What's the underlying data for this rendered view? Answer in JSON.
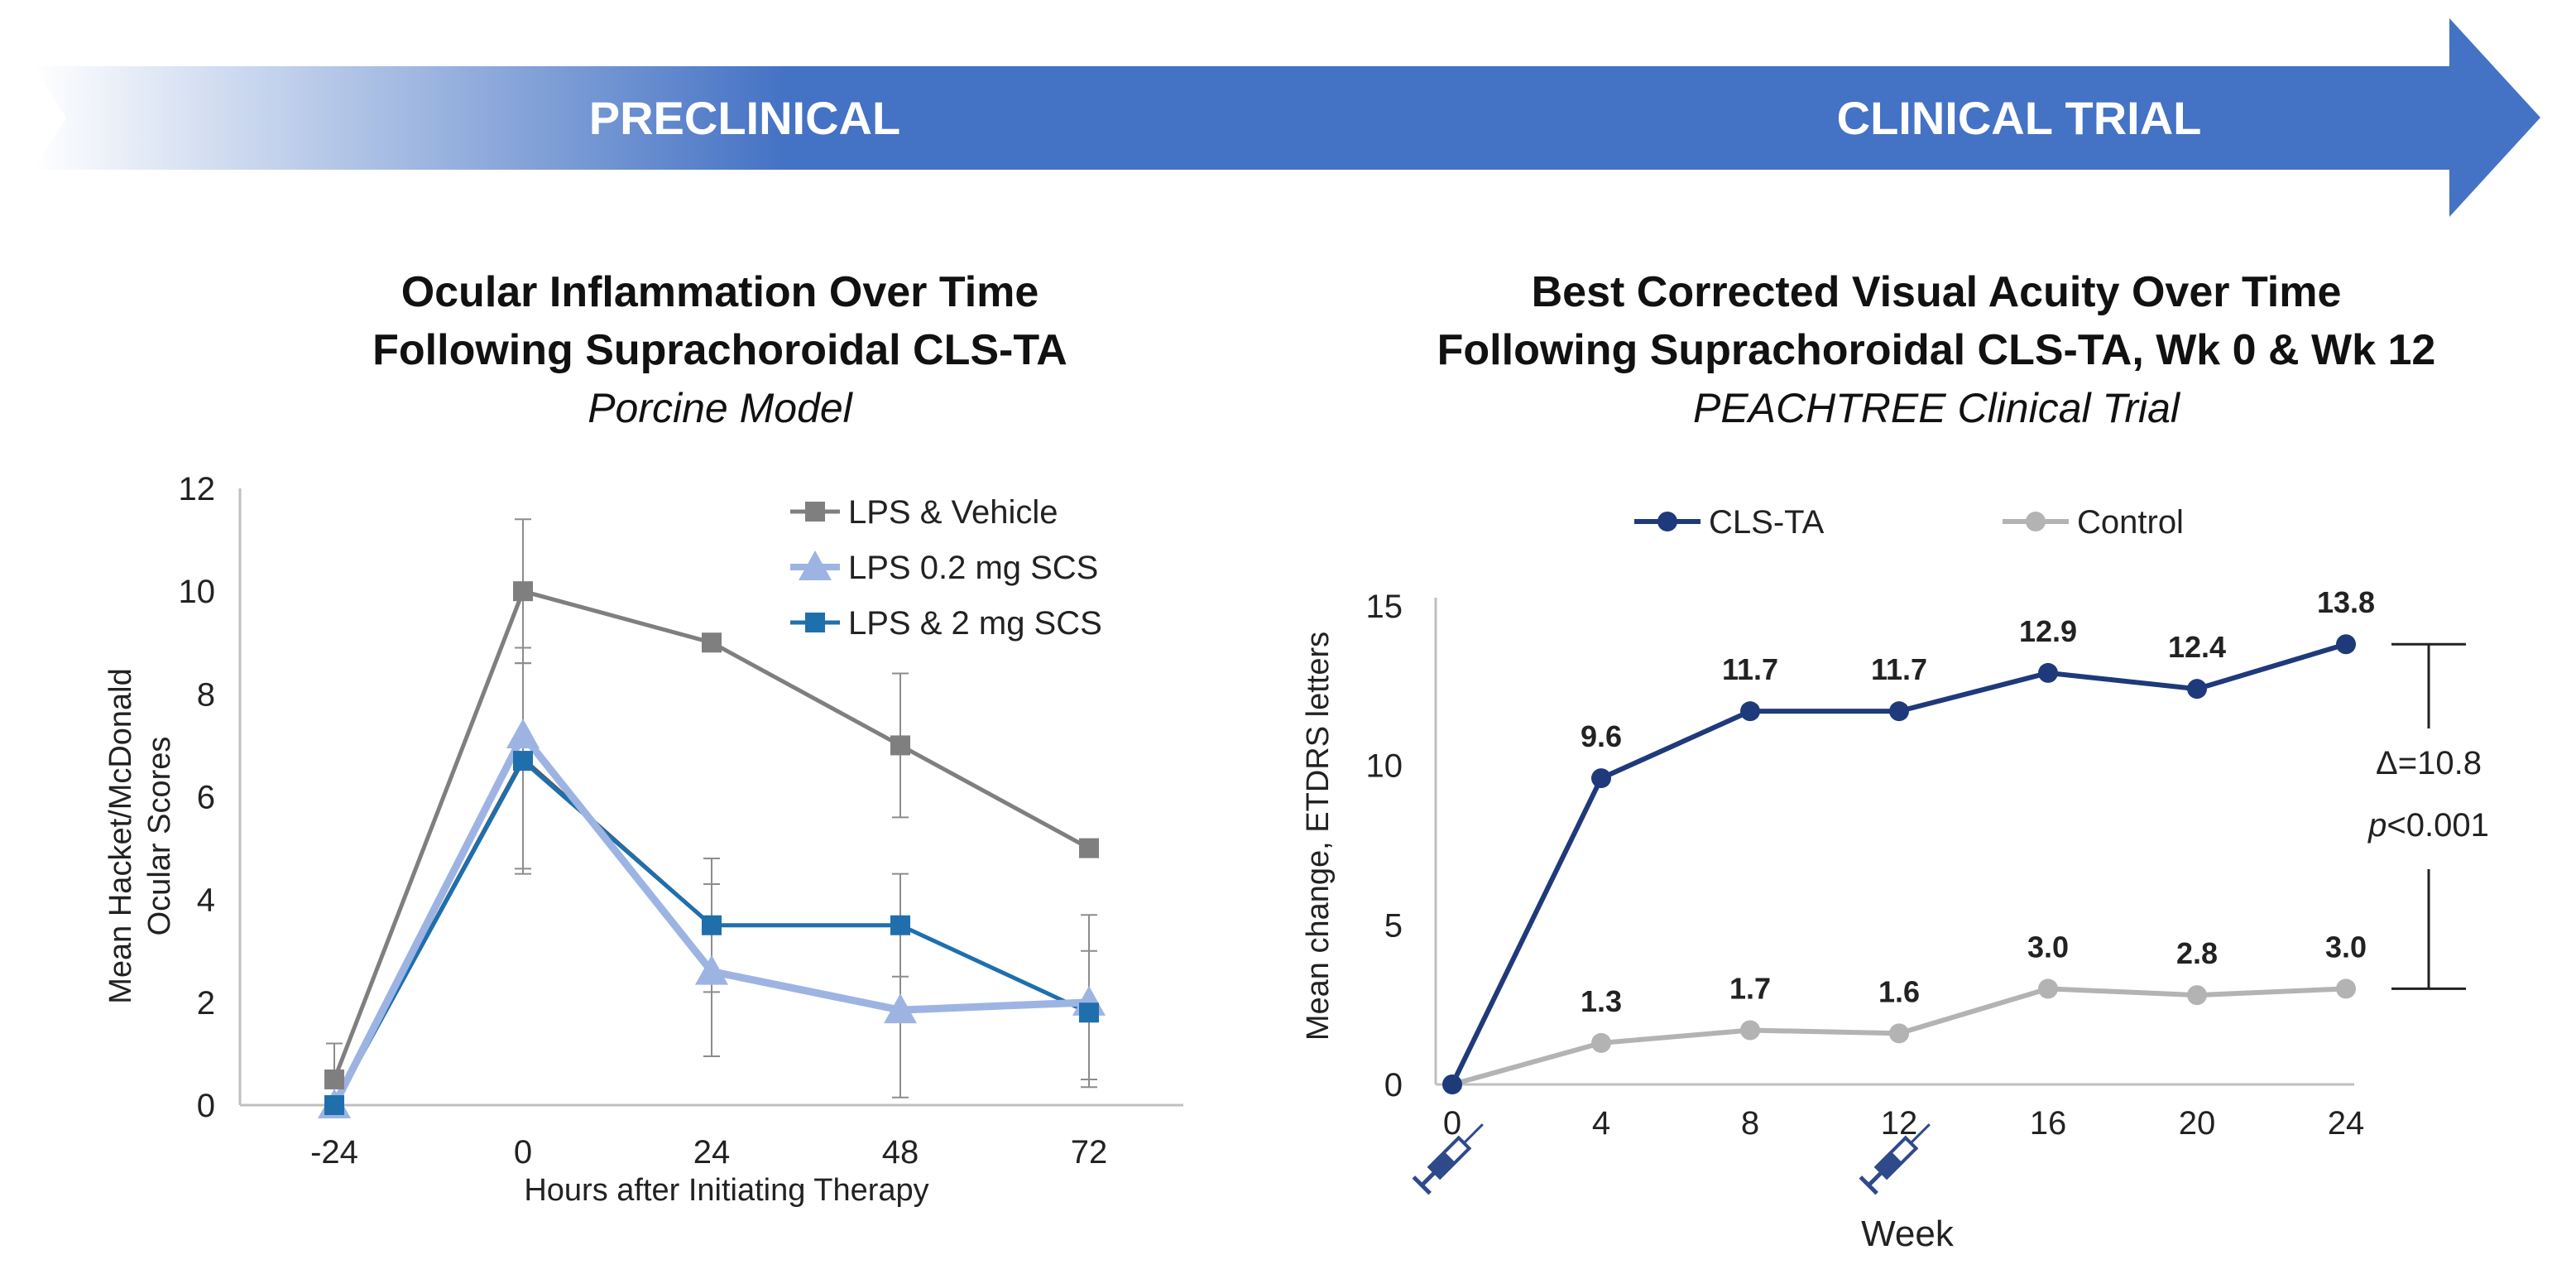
{
  "banner": {
    "left_label": "PRECLINICAL",
    "right_label": "CLINICAL TRIAL",
    "colors": {
      "light": "#ffffff",
      "dark": "#4472c4"
    }
  },
  "chart_data": [
    {
      "type": "line",
      "title_line1": "Ocular Inflammation Over Time",
      "title_line2": "Following Suprachoroidal CLS-TA",
      "subtitle": "Porcine Model",
      "xlabel": "Hours after Initiating Therapy",
      "ylabel_line1": "Mean Hacket/McDonald",
      "ylabel_line2": "Ocular  Scores",
      "categories": [
        "-24",
        "0",
        "24",
        "48",
        "72"
      ],
      "ylim": [
        0,
        12
      ],
      "yticks": [
        "0",
        "2",
        "4",
        "6",
        "8",
        "10",
        "12"
      ],
      "series": [
        {
          "name": "LPS & Vehicle",
          "marker": "square",
          "color": "#7f7f7f",
          "values": [
            0.5,
            10.0,
            9.0,
            7.0,
            5.0
          ],
          "err_low": [
            0.0,
            8.6,
            null,
            5.6,
            null
          ],
          "err_high": [
            1.2,
            11.4,
            null,
            8.4,
            null
          ]
        },
        {
          "name": "LPS 0.2 mg SCS",
          "marker": "triangle",
          "color": "#9db4e3",
          "values": [
            0.0,
            7.2,
            2.6,
            1.85,
            2.0
          ],
          "err_low": [
            null,
            4.5,
            0.95,
            0.15,
            0.35
          ],
          "err_high": [
            null,
            8.9,
            4.8,
            3.6,
            3.7
          ]
        },
        {
          "name": "LPS & 2 mg SCS",
          "marker": "square",
          "color": "#1f6fad",
          "values": [
            0.0,
            6.7,
            3.5,
            3.5,
            1.8
          ],
          "err_low": [
            null,
            4.6,
            2.2,
            2.5,
            0.5
          ],
          "err_high": [
            null,
            8.6,
            4.3,
            4.5,
            3.0
          ]
        }
      ],
      "extra_line": {
        "color": "#595959",
        "values": [
          0.0,
          6.75,
          3.5,
          3.5,
          1.8
        ]
      }
    },
    {
      "type": "line",
      "title_line1": "Best Corrected Visual Acuity Over Time",
      "title_line2": "Following Suprachoroidal CLS-TA, Wk 0 & Wk 12",
      "subtitle": "PEACHTREE Clinical Trial",
      "xlabel": "Week",
      "ylabel": "Mean change, ETDRS letters",
      "x": [
        "0",
        "4",
        "8",
        "12",
        "16",
        "20",
        "24"
      ],
      "ylim": [
        0,
        15
      ],
      "yticks": [
        "0",
        "5",
        "10",
        "15"
      ],
      "series": [
        {
          "name": "CLS-TA",
          "color": "#1f3a7a",
          "values": [
            0,
            9.6,
            11.7,
            11.7,
            12.9,
            12.4,
            13.8
          ],
          "labels": [
            "",
            "9.6",
            "11.7",
            "11.7",
            "12.9",
            "12.4",
            "13.8"
          ]
        },
        {
          "name": "Control",
          "color": "#b3b3b3",
          "values": [
            0,
            1.3,
            1.7,
            1.6,
            3.0,
            2.8,
            3.0
          ],
          "labels": [
            "",
            "1.3",
            "1.7",
            "1.6",
            "3.0",
            "2.8",
            "3.0"
          ]
        }
      ],
      "annotation": {
        "delta": "Δ=10.8",
        "p_italic": "p",
        "p_rest": "<0.001"
      },
      "injection_weeks": [
        "0",
        "12"
      ],
      "injection_icon": "syringe-icon"
    }
  ]
}
